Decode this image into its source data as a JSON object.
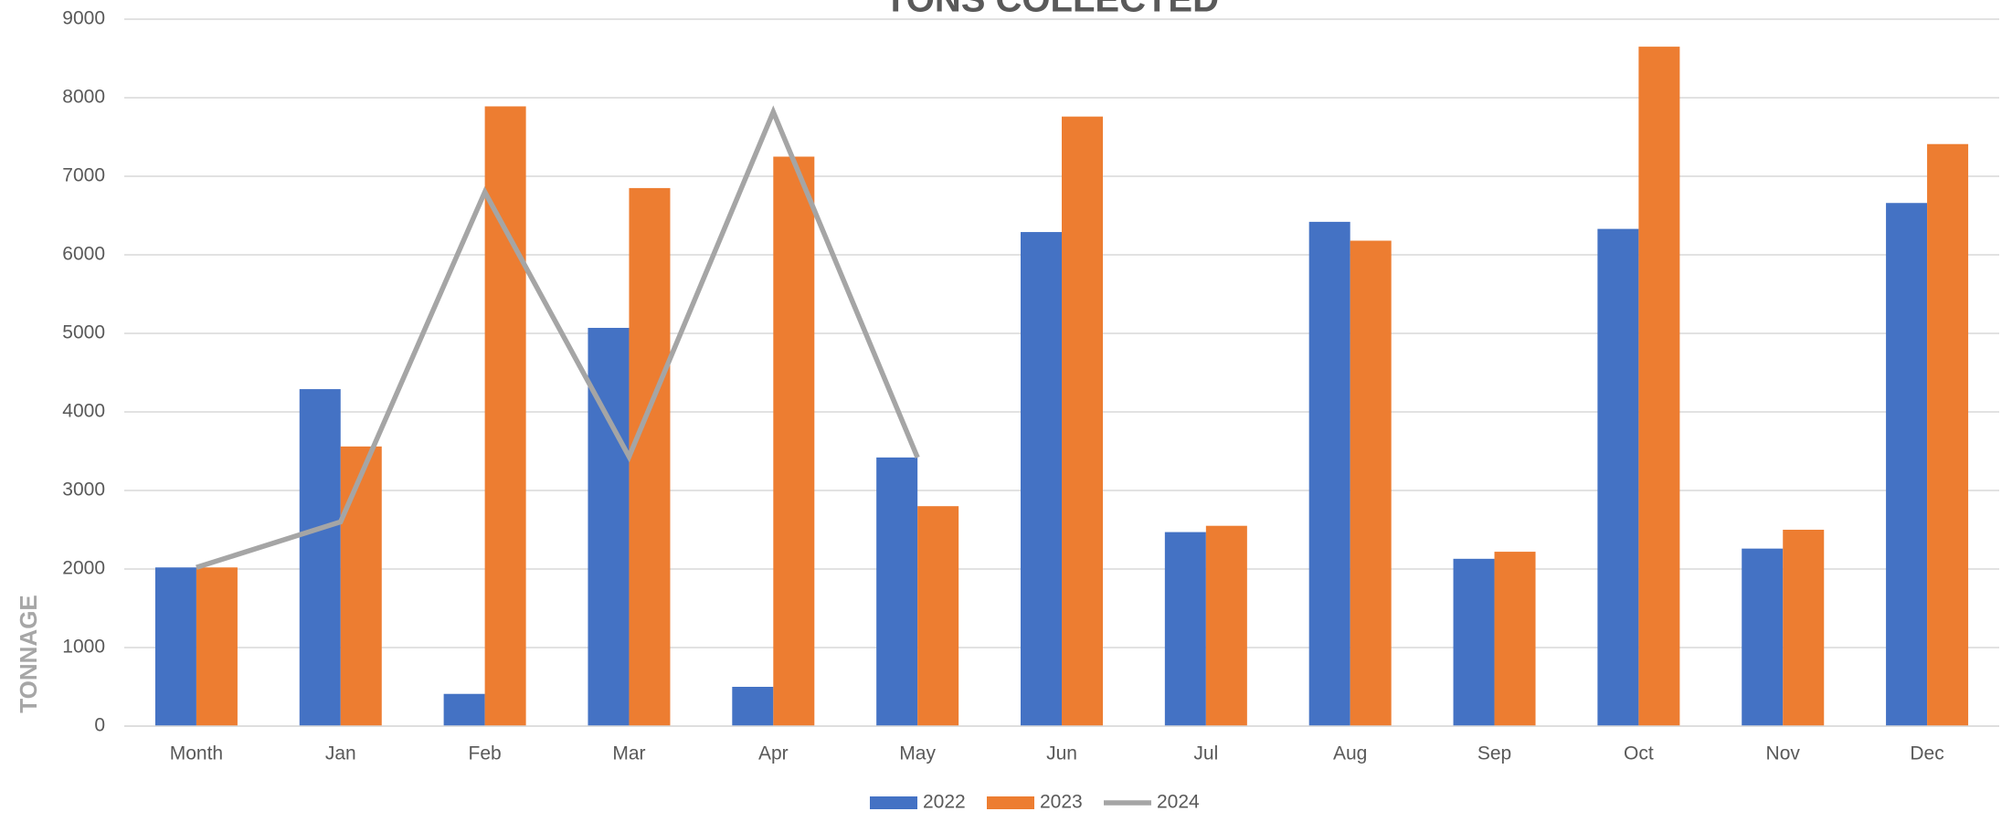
{
  "chart_data": {
    "type": "bar",
    "title": "TONS COLLECTED",
    "y_label": "TONNAGE",
    "categories": [
      "Month",
      "Jan",
      "Feb",
      "Mar",
      "Apr",
      "May",
      "Jun",
      "Jul",
      "Aug",
      "Sep",
      "Oct",
      "Nov",
      "Dec"
    ],
    "series": [
      {
        "name": "2022",
        "color": "#4472c4",
        "type": "bar",
        "values": [
          2020,
          4290,
          410,
          5070,
          500,
          3420,
          6290,
          2470,
          6420,
          2130,
          6330,
          2260,
          6660
        ]
      },
      {
        "name": "2023",
        "color": "#ed7d31",
        "type": "bar",
        "values": [
          2020,
          3560,
          7890,
          6850,
          7250,
          2800,
          7760,
          2550,
          6180,
          2220,
          8650,
          2500,
          7410
        ]
      },
      {
        "name": "2024",
        "color": "#a5a5a5",
        "type": "line",
        "values": [
          2020,
          2600,
          6800,
          3430,
          7820,
          3420,
          null,
          null,
          null,
          null,
          null,
          null,
          null
        ]
      }
    ],
    "ylim": [
      0,
      9000
    ],
    "yticks": [
      0,
      1000,
      2000,
      3000,
      4000,
      5000,
      6000,
      7000,
      8000,
      9000
    ],
    "grid": true,
    "legend": "bottom"
  }
}
